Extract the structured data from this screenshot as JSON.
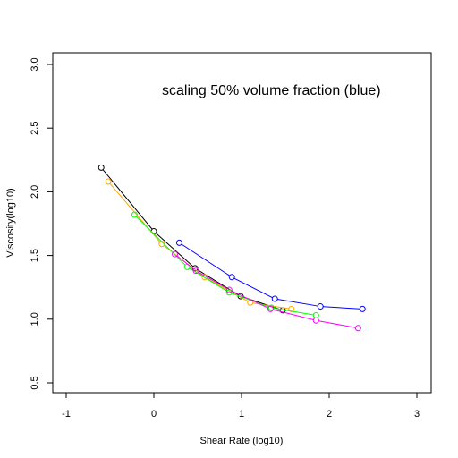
{
  "chart_data": {
    "type": "line",
    "title": "",
    "annotation": "scaling 50% volume fraction (blue)",
    "xlabel": "Shear Rate (log10)",
    "ylabel": "Viscosity(log10)",
    "xlim": [
      -1,
      3
    ],
    "ylim": [
      0.5,
      3.0
    ],
    "x_ticks": [
      -1,
      0,
      1,
      2,
      3
    ],
    "x_tick_labels": [
      "-1",
      "0",
      "1",
      "2",
      "3"
    ],
    "y_ticks": [
      0.5,
      1.0,
      1.5,
      2.0,
      2.5,
      3.0
    ],
    "y_tick_labels": [
      "0.5",
      "1.0",
      "1.5",
      "2.0",
      "2.5",
      "3.0"
    ],
    "grid": false,
    "markers": "open-circle",
    "series": [
      {
        "color": "#000000",
        "x": [
          -0.6,
          0.0,
          0.47,
          0.99,
          1.47
        ],
        "y": [
          2.19,
          1.69,
          1.4,
          1.18,
          1.07
        ]
      },
      {
        "color": "#FFA500",
        "x": [
          -0.52,
          0.09,
          0.58,
          1.1,
          1.57
        ],
        "y": [
          2.08,
          1.59,
          1.33,
          1.13,
          1.08
        ]
      },
      {
        "color": "#00FF00",
        "x": [
          -0.22,
          0.38,
          0.86,
          1.34,
          1.85
        ],
        "y": [
          1.82,
          1.41,
          1.21,
          1.09,
          1.03
        ]
      },
      {
        "color": "#FF00FF",
        "x": [
          0.24,
          0.48,
          0.86,
          1.33,
          1.85,
          2.33
        ],
        "y": [
          1.51,
          1.38,
          1.23,
          1.08,
          0.99,
          0.93
        ]
      },
      {
        "color": "#0000FF",
        "x": [
          0.29,
          0.89,
          1.38,
          1.9,
          2.38
        ],
        "y": [
          1.6,
          1.33,
          1.16,
          1.1,
          1.08
        ]
      }
    ]
  }
}
